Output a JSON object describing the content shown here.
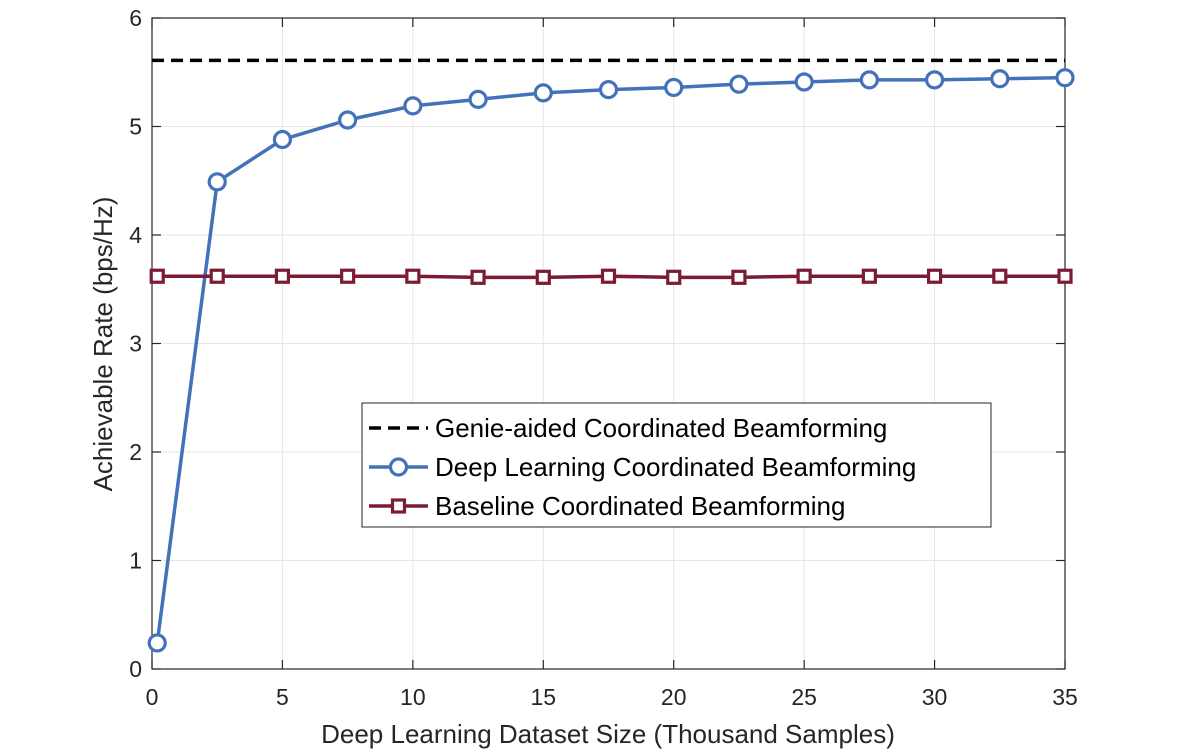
{
  "chart_data": {
    "type": "line",
    "title": "",
    "xlabel": "Deep Learning Dataset Size (Thousand Samples)",
    "ylabel": "Achievable Rate (bps/Hz)",
    "xlim": [
      0,
      35
    ],
    "ylim": [
      0,
      6
    ],
    "xticks": [
      0,
      5,
      10,
      15,
      20,
      25,
      30,
      35
    ],
    "yticks": [
      0,
      1,
      2,
      3,
      4,
      5,
      6
    ],
    "grid": true,
    "legend_position": "center-right",
    "x": [
      0.2,
      2.5,
      5,
      7.5,
      10,
      12.5,
      15,
      17.5,
      20,
      22.5,
      25,
      27.5,
      30,
      32.5,
      35
    ],
    "series": [
      {
        "name": "Genie-aided Coordinated Beamforming",
        "style": "dashed",
        "marker": "none",
        "color": "#000000",
        "x": [
          0,
          35
        ],
        "values": [
          5.61,
          5.61
        ]
      },
      {
        "name": "Deep Learning Coordinated Beamforming",
        "style": "solid",
        "marker": "circle",
        "color": "#4472b8",
        "values": [
          0.24,
          4.49,
          4.88,
          5.06,
          5.19,
          5.25,
          5.31,
          5.34,
          5.36,
          5.39,
          5.41,
          5.43,
          5.43,
          5.44,
          5.45
        ]
      },
      {
        "name": "Baseline Coordinated Beamforming",
        "style": "solid",
        "marker": "square",
        "color": "#7b1b34",
        "values": [
          3.62,
          3.62,
          3.62,
          3.62,
          3.62,
          3.61,
          3.61,
          3.62,
          3.61,
          3.61,
          3.62,
          3.62,
          3.62,
          3.62,
          3.62
        ]
      }
    ]
  }
}
